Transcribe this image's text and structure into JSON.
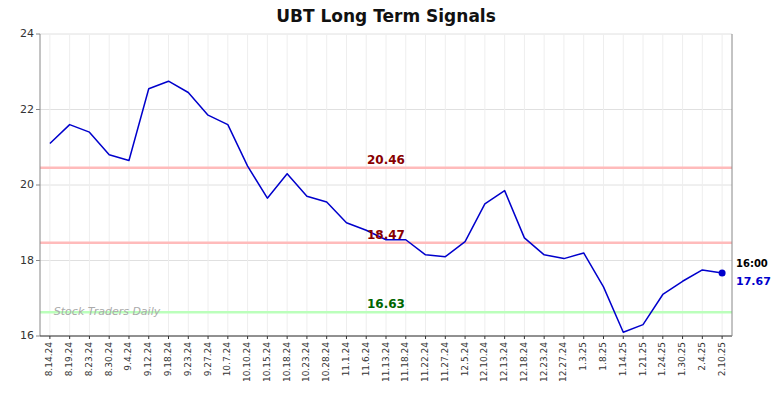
{
  "chart_data": {
    "type": "line",
    "title": "UBT Long Term Signals",
    "categories": [
      "8.14.24",
      "8.19.24",
      "8.23.24",
      "8.30.24",
      "9.4.24",
      "9.12.24",
      "9.18.24",
      "9.23.24",
      "9.27.24",
      "10.7.24",
      "10.10.24",
      "10.15.24",
      "10.18.24",
      "10.23.24",
      "10.28.24",
      "11.1.24",
      "11.6.24",
      "11.13.24",
      "11.18.24",
      "11.22.24",
      "11.27.24",
      "12.5.24",
      "12.10.24",
      "12.13.24",
      "12.18.24",
      "12.23.24",
      "12.27.24",
      "1.3.25",
      "1.8.25",
      "1.14.25",
      "1.21.25",
      "1.24.25",
      "1.30.25",
      "2.4.25",
      "2.10.25"
    ],
    "values": [
      21.1,
      21.6,
      21.4,
      20.8,
      20.65,
      22.55,
      22.75,
      22.45,
      21.85,
      21.6,
      20.5,
      19.65,
      20.3,
      19.7,
      19.55,
      19.0,
      18.8,
      18.55,
      18.55,
      18.15,
      18.1,
      18.5,
      19.5,
      19.85,
      18.6,
      18.15,
      18.05,
      18.2,
      17.3,
      16.1,
      16.3,
      17.1,
      17.45,
      17.75,
      17.67
    ],
    "color": "#0000cc",
    "ylim": [
      16,
      24
    ],
    "yticks": [
      16,
      18,
      20,
      22,
      24
    ],
    "grid": true,
    "reference_lines": [
      {
        "value": 20.46,
        "label": "20.46",
        "color": "#ffbbbb",
        "text_color": "#880000"
      },
      {
        "value": 18.47,
        "label": "18.47",
        "color": "#ffbbbb",
        "text_color": "#880000"
      },
      {
        "value": 16.63,
        "label": "16.63",
        "color": "#bbffbb",
        "text_color": "#006600"
      }
    ],
    "annotations": [
      "16:00",
      "17.67"
    ],
    "watermark": "Stock Traders Daily"
  }
}
